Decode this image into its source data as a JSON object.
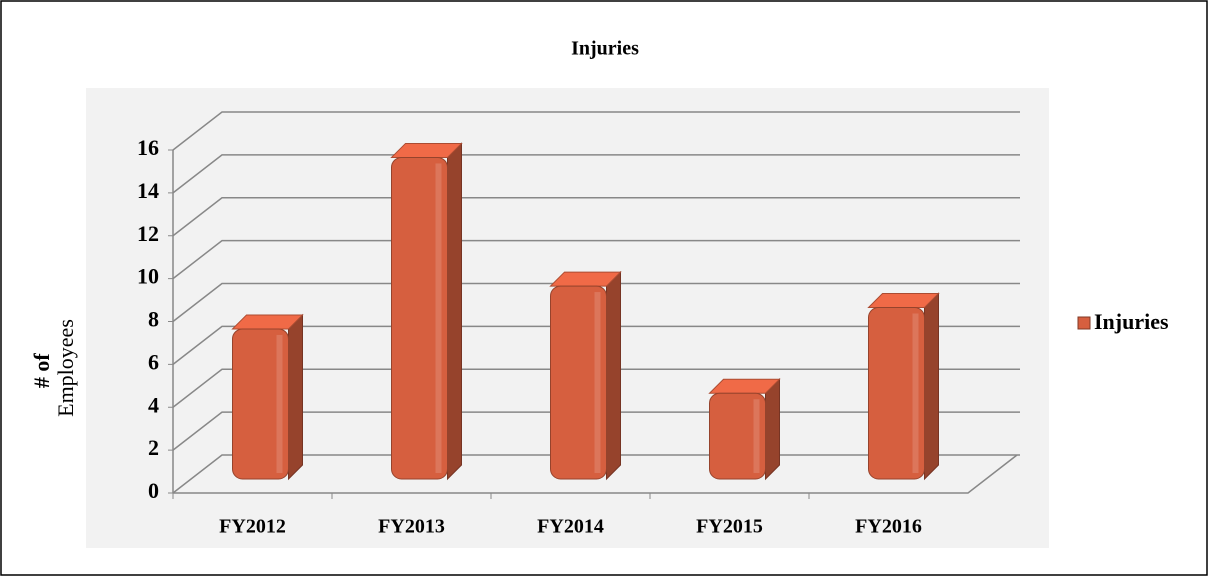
{
  "chart_data": {
    "type": "bar3d",
    "title": "Injuries",
    "y_label_lines": [
      "# of",
      "Employees"
    ],
    "categories": [
      "FY2012",
      "FY2013",
      "FY2014",
      "FY2015",
      "FY2016"
    ],
    "series": [
      {
        "name": "Injuries",
        "color": "#d65f3f",
        "values": [
          7,
          15,
          9,
          4,
          8
        ]
      }
    ],
    "ylim": [
      0,
      16
    ],
    "yticks": [
      0,
      2,
      4,
      6,
      8,
      10,
      12,
      14,
      16
    ],
    "grid": true,
    "legend": "right"
  }
}
